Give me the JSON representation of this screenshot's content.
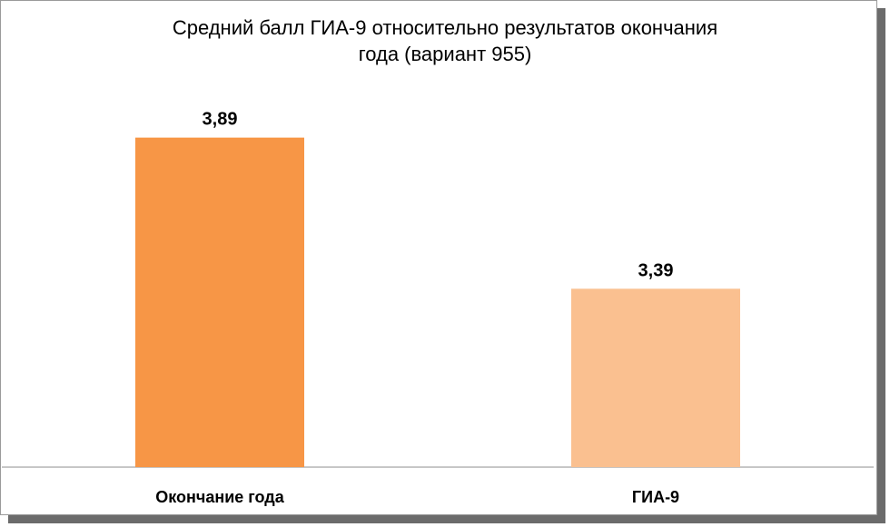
{
  "chart_data": {
    "type": "bar",
    "title_line1": "Средний балл ГИА-9 относительно результатов окончания",
    "title_line2": "года (вариант 955)",
    "categories": [
      "Окончание года",
      "ГИА-9"
    ],
    "values": [
      3.89,
      3.39
    ],
    "value_labels": [
      "3,89",
      "3,39"
    ],
    "colors": [
      "#F79646",
      "#FAC090"
    ],
    "ylim": [
      2.8,
      4.0
    ],
    "grid": false,
    "legend": "none"
  }
}
